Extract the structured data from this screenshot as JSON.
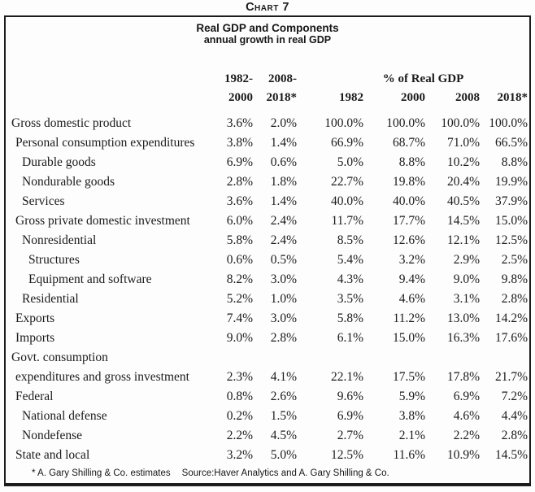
{
  "page": {
    "chart_label": "Chart 7",
    "footer": {
      "estimates_note": "* A. Gary Shilling & Co. estimates",
      "source_note": "Source:Haver Analytics and A. Gary Shilling & Co."
    }
  },
  "chart_data": {
    "type": "table",
    "title": "Real GDP and Components",
    "subtitle": "annual growth in real GDP",
    "column_group_headers": {
      "growth_a": "1982-",
      "growth_b": "2008-",
      "share": "% of Real GDP"
    },
    "columns": [
      "2000",
      "2018*",
      "1982",
      "2000",
      "2008",
      "2018*"
    ],
    "rows": [
      {
        "label": "Gross domestic product",
        "indent": 0,
        "values": [
          "3.6%",
          "2.0%",
          "100.0%",
          "100.0%",
          "100.0%",
          "100.0%"
        ]
      },
      {
        "label": "Personal consumption expenditures",
        "indent": 1,
        "values": [
          "3.8%",
          "1.4%",
          "66.9%",
          "68.7%",
          "71.0%",
          "66.5%"
        ]
      },
      {
        "label": "Durable goods",
        "indent": 2,
        "values": [
          "6.9%",
          "0.6%",
          "5.0%",
          "8.8%",
          "10.2%",
          "8.8%"
        ]
      },
      {
        "label": "Nondurable goods",
        "indent": 2,
        "values": [
          "2.8%",
          "1.8%",
          "22.7%",
          "19.8%",
          "20.4%",
          "19.9%"
        ]
      },
      {
        "label": "Services",
        "indent": 2,
        "values": [
          "3.6%",
          "1.4%",
          "40.0%",
          "40.0%",
          "40.5%",
          "37.9%"
        ]
      },
      {
        "label": "Gross private domestic investment",
        "indent": 1,
        "values": [
          "6.0%",
          "2.4%",
          "11.7%",
          "17.7%",
          "14.5%",
          "15.0%"
        ]
      },
      {
        "label": "Nonresidential",
        "indent": 2,
        "values": [
          "5.8%",
          "2.4%",
          "8.5%",
          "12.6%",
          "12.1%",
          "12.5%"
        ]
      },
      {
        "label": "Structures",
        "indent": 3,
        "values": [
          "0.6%",
          "0.5%",
          "5.4%",
          "3.2%",
          "2.9%",
          "2.5%"
        ]
      },
      {
        "label": "Equipment and software",
        "indent": 3,
        "values": [
          "8.2%",
          "3.0%",
          "4.3%",
          "9.4%",
          "9.0%",
          "9.8%"
        ]
      },
      {
        "label": "Residential",
        "indent": 2,
        "values": [
          "5.2%",
          "1.0%",
          "3.5%",
          "4.6%",
          "3.1%",
          "2.8%"
        ]
      },
      {
        "label": "Exports",
        "indent": 1,
        "values": [
          "7.4%",
          "3.0%",
          "5.8%",
          "11.2%",
          "13.0%",
          "14.2%"
        ]
      },
      {
        "label": "Imports",
        "indent": 1,
        "values": [
          "9.0%",
          "2.8%",
          "6.1%",
          "15.0%",
          "16.3%",
          "17.6%"
        ]
      },
      {
        "label": "Govt. consumption",
        "indent": 0,
        "values": [
          "",
          "",
          "",
          "",
          "",
          ""
        ]
      },
      {
        "label": "expenditures and gross investment",
        "indent": 1,
        "values": [
          "2.3%",
          "4.1%",
          "22.1%",
          "17.5%",
          "17.8%",
          "21.7%"
        ]
      },
      {
        "label": "Federal",
        "indent": 1,
        "values": [
          "0.8%",
          "2.6%",
          "9.6%",
          "5.9%",
          "6.9%",
          "7.2%"
        ]
      },
      {
        "label": "National defense",
        "indent": 2,
        "values": [
          "0.2%",
          "1.5%",
          "6.9%",
          "3.8%",
          "4.6%",
          "4.4%"
        ]
      },
      {
        "label": "Nondefense",
        "indent": 2,
        "values": [
          "2.2%",
          "4.5%",
          "2.7%",
          "2.1%",
          "2.2%",
          "2.8%"
        ]
      },
      {
        "label": "State and local",
        "indent": 1,
        "values": [
          "3.2%",
          "5.0%",
          "12.5%",
          "11.6%",
          "10.9%",
          "14.5%"
        ]
      }
    ]
  }
}
